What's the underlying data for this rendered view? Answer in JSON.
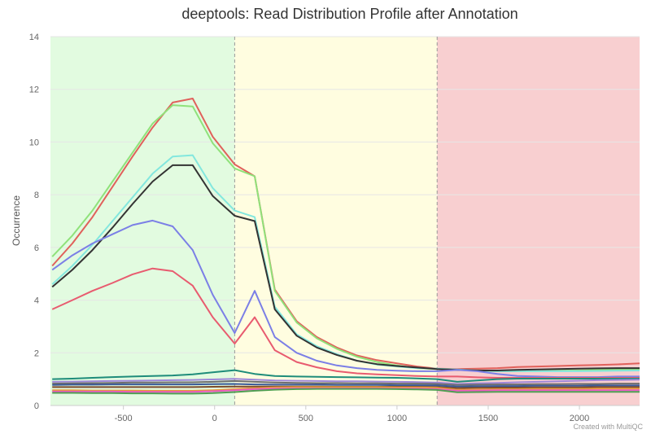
{
  "chart_data": {
    "type": "line",
    "title": "deeptools: Read Distribution Profile after Annotation",
    "ylabel": "Occurrence",
    "xlabel": "",
    "credit": "Created with MultiQC",
    "xlim": [
      -900,
      2330
    ],
    "ylim": [
      0,
      14
    ],
    "x_ticks": [
      -500,
      0,
      500,
      1000,
      1500,
      2000
    ],
    "y_ticks": [
      0,
      2,
      4,
      6,
      8,
      10,
      12,
      14
    ],
    "bands": [
      {
        "from": -900,
        "to": 110,
        "color": "#e2fbe0"
      },
      {
        "from": 110,
        "to": 1220,
        "color": "#fffde0"
      },
      {
        "from": 1220,
        "to": 2330,
        "color": "#f8cfd0"
      }
    ],
    "divider_lines": [
      110,
      1220
    ],
    "x": [
      -890,
      -780,
      -670,
      -560,
      -450,
      -340,
      -230,
      -120,
      -10,
      110,
      220,
      330,
      450,
      560,
      670,
      780,
      890,
      1000,
      1110,
      1220,
      1330,
      1440,
      1550,
      1660,
      1770,
      1880,
      1990,
      2100,
      2210,
      2330
    ],
    "series": [
      {
        "color": "#e0615b",
        "values": [
          5.3,
          6.15,
          7.15,
          8.3,
          9.45,
          10.55,
          11.5,
          11.65,
          10.2,
          9.15,
          8.7,
          4.4,
          3.2,
          2.6,
          2.2,
          1.9,
          1.72,
          1.6,
          1.48,
          1.4,
          1.38,
          1.4,
          1.42,
          1.46,
          1.48,
          1.5,
          1.52,
          1.54,
          1.56,
          1.6
        ]
      },
      {
        "color": "#8fe27a",
        "values": [
          5.65,
          6.45,
          7.4,
          8.5,
          9.6,
          10.7,
          11.4,
          11.35,
          9.95,
          9.0,
          8.7,
          4.35,
          3.15,
          2.55,
          2.15,
          1.85,
          1.65,
          1.52,
          1.42,
          1.38,
          1.35,
          1.32,
          1.3,
          1.3,
          1.3,
          1.32,
          1.33,
          1.35,
          1.37,
          1.38
        ]
      },
      {
        "color": "#83e7de",
        "values": [
          4.6,
          5.3,
          6.1,
          7.0,
          7.9,
          8.8,
          9.45,
          9.5,
          8.25,
          7.4,
          7.15,
          3.75,
          2.7,
          2.25,
          1.95,
          1.7,
          1.55,
          1.48,
          1.42,
          1.4,
          1.37,
          1.33,
          1.3,
          1.3,
          1.3,
          1.3,
          1.3,
          1.31,
          1.32,
          1.33
        ]
      },
      {
        "color": "#333333",
        "values": [
          4.5,
          5.15,
          5.9,
          6.75,
          7.65,
          8.5,
          9.12,
          9.12,
          7.95,
          7.2,
          7.0,
          3.65,
          2.65,
          2.2,
          1.92,
          1.7,
          1.57,
          1.5,
          1.44,
          1.38,
          1.35,
          1.33,
          1.33,
          1.35,
          1.37,
          1.38,
          1.4,
          1.41,
          1.42,
          1.42
        ]
      },
      {
        "color": "#7b7fe6",
        "values": [
          5.15,
          5.7,
          6.15,
          6.5,
          6.85,
          7.02,
          6.8,
          5.9,
          4.2,
          2.75,
          4.35,
          2.6,
          2.0,
          1.7,
          1.52,
          1.42,
          1.35,
          1.32,
          1.3,
          1.3,
          1.35,
          1.3,
          1.2,
          1.12,
          1.1,
          1.08,
          1.08,
          1.08,
          1.1,
          1.1
        ]
      },
      {
        "color": "#e85b6f",
        "values": [
          3.65,
          4.0,
          4.35,
          4.65,
          4.98,
          5.2,
          5.1,
          4.55,
          3.35,
          2.35,
          3.35,
          2.1,
          1.65,
          1.45,
          1.3,
          1.22,
          1.18,
          1.15,
          1.12,
          1.1,
          1.1,
          1.07,
          1.05,
          1.05,
          1.05,
          1.05,
          1.05,
          1.05,
          1.05,
          1.05
        ]
      },
      {
        "color": "#1e8c7a",
        "values": [
          1.0,
          1.02,
          1.05,
          1.08,
          1.1,
          1.12,
          1.14,
          1.18,
          1.26,
          1.34,
          1.2,
          1.12,
          1.1,
          1.09,
          1.08,
          1.07,
          1.06,
          1.05,
          1.03,
          1.0,
          0.9,
          0.95,
          1.0,
          1.02,
          1.02,
          1.02,
          1.02,
          1.02,
          1.02,
          1.02
        ]
      },
      {
        "color": "#9e87d8",
        "values": [
          0.9,
          0.91,
          0.92,
          0.93,
          0.94,
          0.95,
          0.96,
          0.97,
          0.99,
          1.01,
          0.98,
          0.95,
          0.94,
          0.93,
          0.92,
          0.92,
          0.91,
          0.9,
          0.89,
          0.87,
          0.82,
          0.84,
          0.86,
          0.88,
          0.9,
          0.92,
          0.94,
          0.96,
          0.97,
          0.98
        ]
      },
      {
        "color": "#6e6e6e",
        "values": [
          0.83,
          0.84,
          0.85,
          0.86,
          0.87,
          0.87,
          0.88,
          0.88,
          0.9,
          0.93,
          0.9,
          0.87,
          0.86,
          0.85,
          0.85,
          0.84,
          0.84,
          0.83,
          0.83,
          0.82,
          0.78,
          0.79,
          0.8,
          0.8,
          0.81,
          0.81,
          0.82,
          0.82,
          0.83,
          0.83
        ]
      },
      {
        "color": "#3a5a99",
        "values": [
          0.78,
          0.79,
          0.79,
          0.8,
          0.8,
          0.8,
          0.8,
          0.8,
          0.81,
          0.82,
          0.8,
          0.79,
          0.79,
          0.79,
          0.78,
          0.78,
          0.78,
          0.77,
          0.77,
          0.76,
          0.72,
          0.73,
          0.74,
          0.74,
          0.75,
          0.75,
          0.75,
          0.76,
          0.76,
          0.76
        ]
      },
      {
        "color": "#7b4a2a",
        "values": [
          0.7,
          0.7,
          0.7,
          0.7,
          0.7,
          0.7,
          0.7,
          0.7,
          0.71,
          0.72,
          0.72,
          0.72,
          0.72,
          0.72,
          0.71,
          0.71,
          0.71,
          0.71,
          0.71,
          0.7,
          0.66,
          0.67,
          0.68,
          0.68,
          0.69,
          0.69,
          0.69,
          0.7,
          0.7,
          0.7
        ]
      },
      {
        "color": "#e79a3a",
        "values": [
          0.58,
          0.58,
          0.57,
          0.57,
          0.57,
          0.56,
          0.56,
          0.56,
          0.58,
          0.62,
          0.66,
          0.69,
          0.7,
          0.7,
          0.7,
          0.7,
          0.7,
          0.69,
          0.69,
          0.67,
          0.6,
          0.61,
          0.62,
          0.62,
          0.63,
          0.63,
          0.63,
          0.64,
          0.64,
          0.64
        ]
      },
      {
        "color": "#e85bc0",
        "values": [
          0.53,
          0.53,
          0.53,
          0.53,
          0.52,
          0.52,
          0.52,
          0.52,
          0.54,
          0.58,
          0.62,
          0.64,
          0.65,
          0.65,
          0.65,
          0.65,
          0.65,
          0.64,
          0.64,
          0.62,
          0.56,
          0.57,
          0.58,
          0.58,
          0.58,
          0.58,
          0.58,
          0.58,
          0.58,
          0.58
        ]
      },
      {
        "color": "#4f9e52",
        "values": [
          0.48,
          0.48,
          0.47,
          0.47,
          0.46,
          0.46,
          0.45,
          0.45,
          0.47,
          0.51,
          0.56,
          0.6,
          0.62,
          0.63,
          0.63,
          0.63,
          0.63,
          0.62,
          0.61,
          0.59,
          0.5,
          0.51,
          0.52,
          0.52,
          0.52,
          0.52,
          0.52,
          0.52,
          0.52,
          0.52
        ]
      }
    ]
  }
}
